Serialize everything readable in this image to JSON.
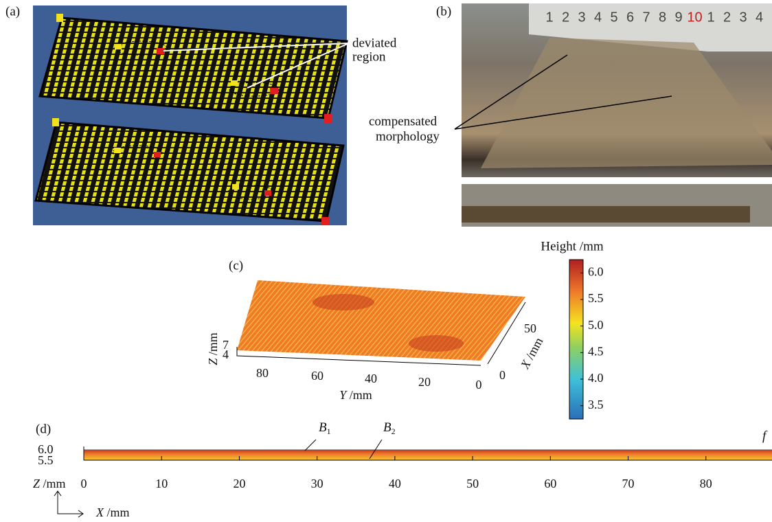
{
  "panels": {
    "a": {
      "label": "(a)",
      "annotation": [
        "deviated",
        "region"
      ]
    },
    "b": {
      "label": "(b)",
      "annotation": [
        "compensated",
        "morphology"
      ],
      "ruler": [
        "1",
        "2",
        "3",
        "4",
        "5",
        "6",
        "7",
        "8",
        "9",
        "10",
        "1",
        "2",
        "3",
        "4"
      ]
    },
    "c": {
      "label": "(c)",
      "z_axis": {
        "var": "Z",
        "unit": "/mm",
        "ticks": [
          7,
          4
        ]
      },
      "y_axis": {
        "var": "Y",
        "unit": "/mm",
        "ticks": [
          80,
          60,
          40,
          20,
          0
        ]
      },
      "x_axis": {
        "var": "X",
        "unit": "/mm",
        "ticks": [
          50,
          0
        ]
      },
      "colorbar": {
        "title": "Height /mm",
        "lim": [
          3.25,
          6.25
        ],
        "ticks": [
          {
            "value": 6,
            "label": "6.0"
          },
          5.5,
          {
            "value": 5,
            "label": "5.0"
          },
          4.5,
          {
            "value": 4,
            "label": "4.0"
          },
          3.5
        ]
      }
    },
    "d": {
      "label": "(d)",
      "z_axis": {
        "var": "Z",
        "unit": "/mm",
        "ticks": [
          {
            "value": 6,
            "label": "6.0"
          },
          5.5
        ]
      },
      "x_axis": {
        "var": "X",
        "unit": "/mm",
        "lim": [
          0,
          88.5
        ],
        "ticks": [
          0,
          10,
          20,
          30,
          40,
          50,
          60,
          70,
          80
        ]
      },
      "annotations": [
        {
          "letter": "B",
          "sub": "1"
        },
        {
          "letter": "B",
          "sub": "2"
        },
        {
          "letter": "f"
        }
      ]
    }
  }
}
